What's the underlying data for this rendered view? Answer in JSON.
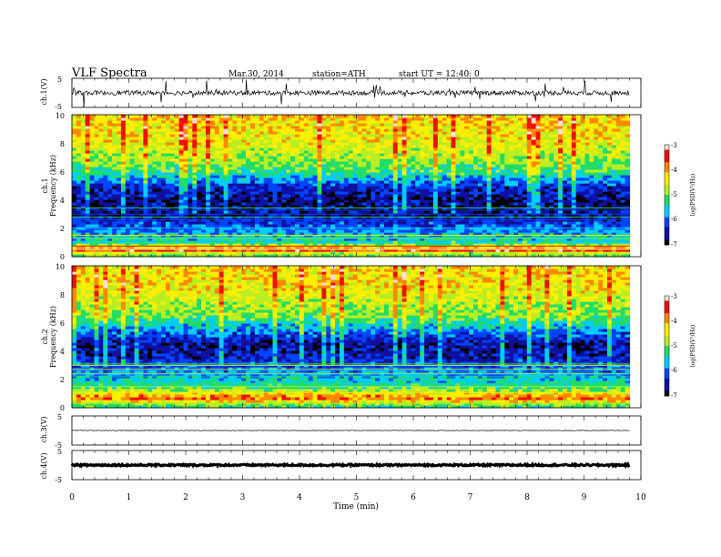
{
  "header": {
    "title": "VLF  Spectra",
    "date": "Mar.30, 2014",
    "station": "station=ATH",
    "start_ut": "start  UT  =    12:40: 0"
  },
  "colors": {
    "spectral_scale": [
      "#000000",
      "#1010a0",
      "#0044ff",
      "#00ccff",
      "#22dd66",
      "#b8ee22",
      "#ffee00",
      "#ff8800",
      "#ee1100",
      "#ffdddd"
    ]
  },
  "chart_data": [
    {
      "type": "line",
      "panel": "ch1-waveform",
      "ylabel": "ch.1(V)",
      "xlim": [
        0,
        10
      ],
      "ylim": [
        -5,
        5
      ],
      "yticks": [
        "5",
        "-5"
      ],
      "data_extent_min": [
        0,
        9.8
      ],
      "level_v": 0.0,
      "noise_amplitude_v": 0.8,
      "spikes": true
    },
    {
      "type": "heatmap",
      "panel": "ch1-spectrogram",
      "ylabel": "ch.1\nFrequency (kHz)",
      "xlim": [
        0,
        10
      ],
      "ylim": [
        0,
        10
      ],
      "yticks": [
        "0",
        "2",
        "4",
        "6",
        "8",
        "10"
      ],
      "data_extent_min": [
        0,
        9.8
      ],
      "colorbar": {
        "label": "log(PSD(V²/Hz)",
        "range": [
          -7,
          -3
        ],
        "ticks": [
          "-3",
          "-4",
          "-5",
          "-6",
          "-7"
        ]
      },
      "profile": [
        {
          "f_khz": 0.2,
          "log_psd": -5.0
        },
        {
          "f_khz": 0.5,
          "log_psd": -3.5
        },
        {
          "f_khz": 1.0,
          "log_psd": -5.4
        },
        {
          "f_khz": 2.0,
          "log_psd": -6.0
        },
        {
          "f_khz": 3.0,
          "log_psd": -6.6
        },
        {
          "f_khz": 4.0,
          "log_psd": -6.7
        },
        {
          "f_khz": 5.0,
          "log_psd": -6.3
        },
        {
          "f_khz": 6.0,
          "log_psd": -5.3
        },
        {
          "f_khz": 7.0,
          "log_psd": -4.8
        },
        {
          "f_khz": 8.0,
          "log_psd": -4.5
        },
        {
          "f_khz": 9.0,
          "log_psd": -4.3
        },
        {
          "f_khz": 10.0,
          "log_psd": -4.2
        }
      ]
    },
    {
      "type": "heatmap",
      "panel": "ch2-spectrogram",
      "ylabel": "ch.2\nFrequency (kHz)",
      "xlim": [
        0,
        10
      ],
      "ylim": [
        0,
        10
      ],
      "yticks": [
        "0",
        "2",
        "4",
        "6",
        "8",
        "10"
      ],
      "data_extent_min": [
        0,
        9.8
      ],
      "colorbar": {
        "label": "log(PSD(V²/Hz)",
        "range": [
          -7,
          -3
        ],
        "ticks": [
          "-3",
          "-4",
          "-5",
          "-6",
          "-7"
        ]
      },
      "profile": [
        {
          "f_khz": 0.2,
          "log_psd": -5.2
        },
        {
          "f_khz": 0.7,
          "log_psd": -3.7
        },
        {
          "f_khz": 1.5,
          "log_psd": -5.3
        },
        {
          "f_khz": 2.5,
          "log_psd": -5.9
        },
        {
          "f_khz": 3.5,
          "log_psd": -6.4
        },
        {
          "f_khz": 4.5,
          "log_psd": -6.6
        },
        {
          "f_khz": 5.5,
          "log_psd": -5.9
        },
        {
          "f_khz": 6.5,
          "log_psd": -5.0
        },
        {
          "f_khz": 7.5,
          "log_psd": -4.7
        },
        {
          "f_khz": 8.5,
          "log_psd": -4.4
        },
        {
          "f_khz": 10.0,
          "log_psd": -4.3
        }
      ]
    },
    {
      "type": "line",
      "panel": "ch3-waveform",
      "ylabel": "ch.3(V)",
      "xlim": [
        0,
        10
      ],
      "ylim": [
        -5,
        5
      ],
      "yticks": [
        "5",
        "-5"
      ],
      "data_extent_min": [
        0,
        9.8
      ],
      "level_v": 0.0,
      "noise_amplitude_v": 0.1,
      "spikes": false
    },
    {
      "type": "line",
      "panel": "ch4-waveform",
      "ylabel": "ch.4(V)",
      "xlim": [
        0,
        10
      ],
      "ylim": [
        -5,
        5
      ],
      "yticks": [
        "5",
        "-5"
      ],
      "data_extent_min": [
        0,
        9.8
      ],
      "level_v": 0.0,
      "noise_amplitude_v": 0.3,
      "spikes": false
    }
  ],
  "x_axis": {
    "label": "Time  (min)",
    "ticks": [
      "0",
      "1",
      "2",
      "3",
      "4",
      "5",
      "6",
      "7",
      "8",
      "9",
      "10"
    ]
  }
}
